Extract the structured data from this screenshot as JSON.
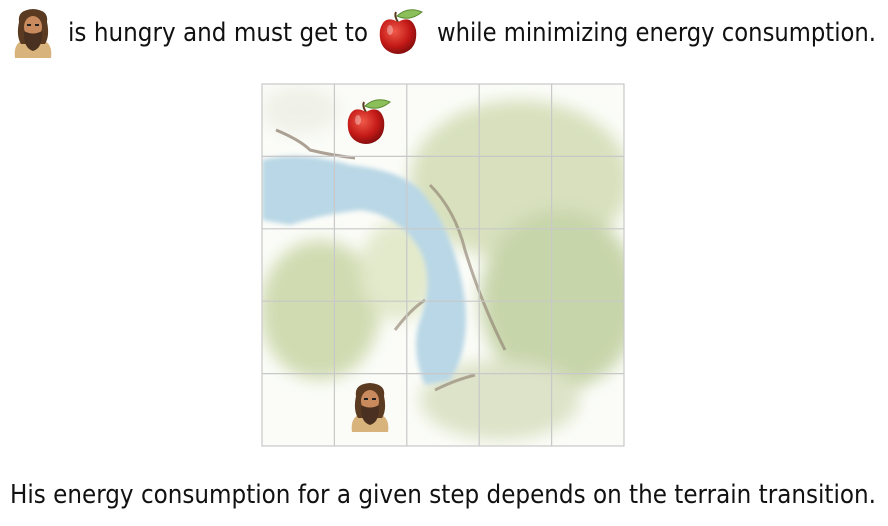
{
  "header": {
    "text_before": "is hungry and must get to",
    "text_after": "while minimizing energy consumption."
  },
  "footer": {
    "text": "His energy consumption for a given step depends on the terrain transition."
  }
}
